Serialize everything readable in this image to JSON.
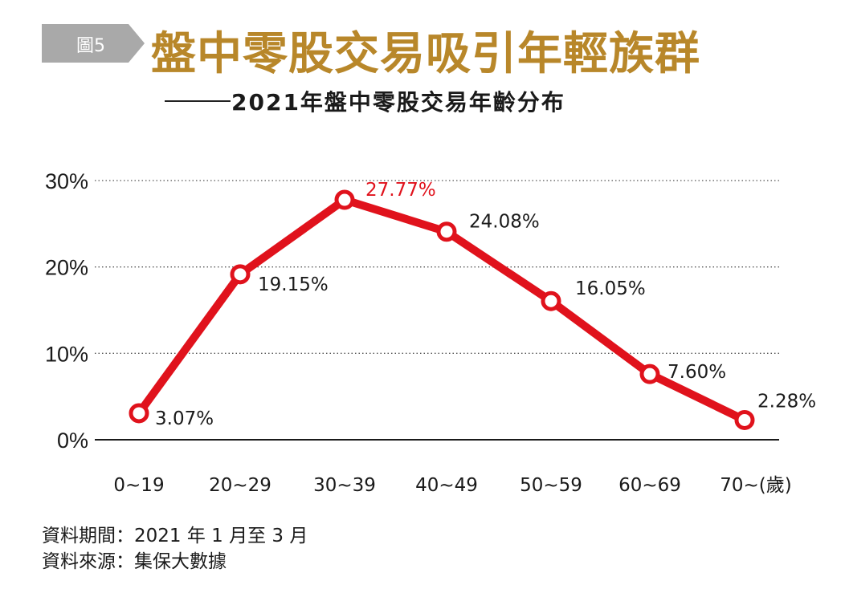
{
  "header": {
    "figure_badge": "圖5",
    "title": "盤中零股交易吸引年輕族群",
    "subtitle": "2021年盤中零股交易年齡分布"
  },
  "colors": {
    "line": "#e0121c",
    "highlight_label": "#e0121c",
    "title_gold": "#b8872a",
    "badge_gray": "#a9a9a9"
  },
  "chart_data": {
    "type": "line",
    "title": "2021年盤中零股交易年齡分布",
    "categories": [
      "0~19",
      "20~29",
      "30~39",
      "40~49",
      "50~59",
      "60~69",
      "70~(歲)"
    ],
    "series": [
      {
        "values": [
          3.07,
          19.15,
          27.77,
          24.08,
          16.05,
          7.6,
          2.28
        ],
        "labels": [
          "3.07%",
          "19.15%",
          "27.77%",
          "24.08%",
          "16.05%",
          "7.60%",
          "2.28%"
        ]
      }
    ],
    "highlight_index": 2,
    "yticks": [
      "0%",
      "10%",
      "20%",
      "30%"
    ],
    "ytick_values": [
      0,
      10,
      20,
      30
    ],
    "ylim": [
      0,
      30
    ],
    "grid": "dotted horizontal",
    "xlabel": "",
    "ylabel": ""
  },
  "footer": {
    "period": "資料期間：2021 年 1 月至 3 月",
    "source": "資料來源：集保大數據"
  }
}
